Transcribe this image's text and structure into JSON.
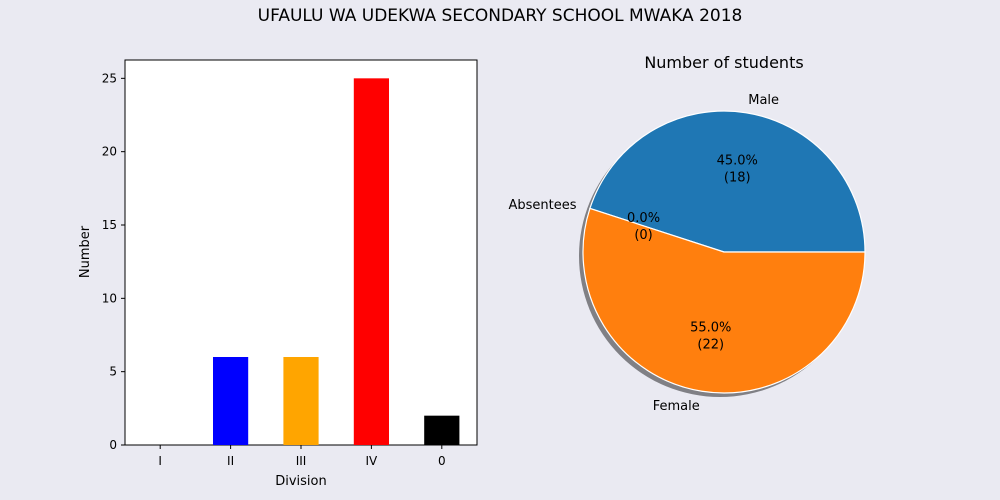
{
  "figure": {
    "title": "UFAULU WA UDEKWA SECONDARY SCHOOL MWAKA 2018"
  },
  "chart_data": [
    {
      "type": "bar",
      "title": "",
      "xlabel": "Division",
      "ylabel": "Number",
      "categories": [
        "I",
        "II",
        "III",
        "IV",
        "0"
      ],
      "values": [
        0,
        6,
        6,
        25,
        2
      ],
      "colors": [
        "#0000ff",
        "#0000ff",
        "#ffa500",
        "#ff0000",
        "#000000"
      ],
      "ylim": [
        0,
        26.25
      ],
      "yticks": [
        0,
        5,
        10,
        15,
        20,
        25
      ],
      "grid": false
    },
    {
      "type": "pie",
      "title": "Number of students",
      "labels": [
        "Male",
        "Absentees",
        "Female"
      ],
      "values": [
        18,
        0,
        22
      ],
      "percent_labels": [
        "45.0%",
        "0.0%",
        "55.0%"
      ],
      "count_labels": [
        "(18)",
        "(0)",
        "(22)"
      ],
      "colors": [
        "#1f77b4",
        "#2ca02c",
        "#ff7f0e"
      ],
      "shadow": true
    }
  ]
}
